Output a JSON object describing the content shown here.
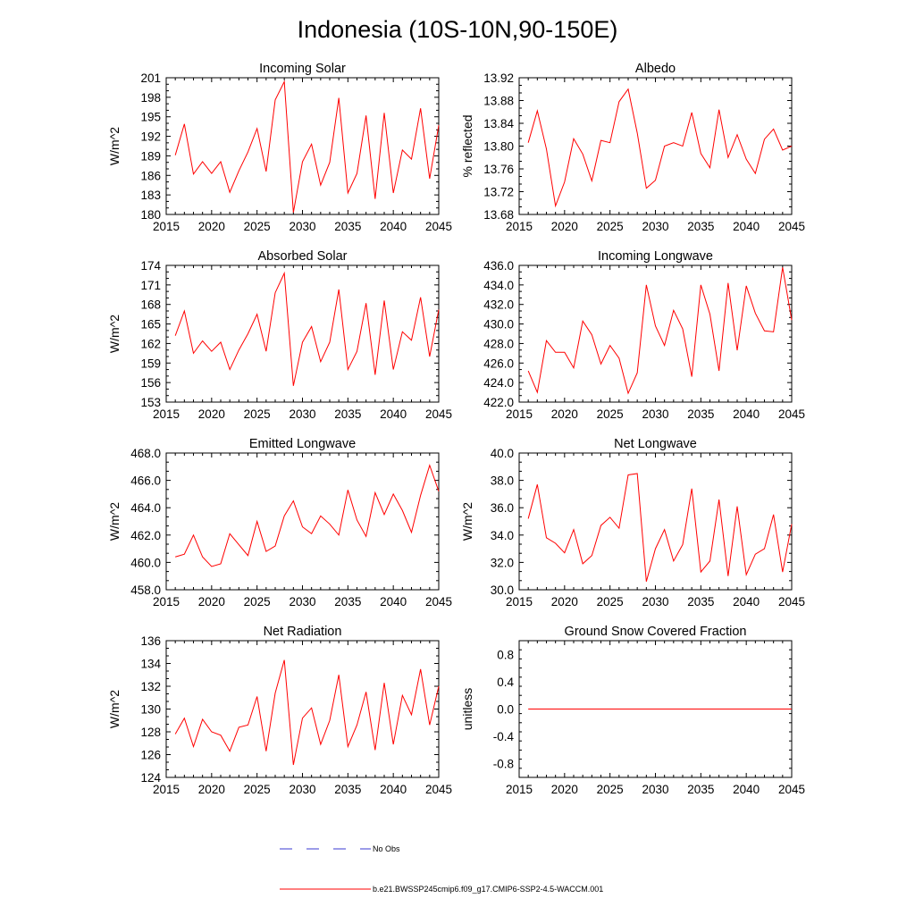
{
  "figure": {
    "title": "Indonesia (10S-10N,90-150E)",
    "legend": [
      {
        "label": "No Obs",
        "color": "#3a3ad0",
        "style": "dashed"
      },
      {
        "label": "b.e21.BWSSP245cmip6.f09_g17.CMIP6-SSP2-4.5-WACCM.001",
        "color": "#ff0000",
        "style": "solid"
      }
    ],
    "series_color": "#ff0000"
  },
  "chart_data": [
    {
      "type": "line",
      "title": "Incoming Solar",
      "ylabel": "W/m^2",
      "xlim": [
        2015,
        2045
      ],
      "ylim": [
        180,
        201
      ],
      "xticks": [
        2015,
        2020,
        2025,
        2030,
        2035,
        2040,
        2045
      ],
      "yticks": [
        180,
        183,
        186,
        189,
        192,
        195,
        198,
        201
      ],
      "ytick_labels": [
        "180",
        "183",
        "186",
        "189",
        "192",
        "195",
        "198",
        "201"
      ],
      "series": [
        {
          "name": "b.e21.BWSSP245cmip6.f09_g17.CMIP6-SSP2-4.5-WACCM.001",
          "x": [
            2016,
            2017,
            2018,
            2019,
            2020,
            2021,
            2022,
            2023,
            2024,
            2025,
            2026,
            2027,
            2028,
            2029,
            2030,
            2031,
            2032,
            2033,
            2034,
            2035,
            2036,
            2037,
            2038,
            2039,
            2040,
            2041,
            2042,
            2043,
            2044,
            2045
          ],
          "y": [
            189.1,
            193.9,
            186.2,
            188.1,
            186.3,
            188.1,
            183.4,
            186.7,
            189.6,
            193.2,
            186.6,
            197.6,
            200.4,
            180.3,
            188.1,
            190.8,
            184.5,
            188.0,
            197.9,
            183.3,
            186.3,
            195.2,
            182.4,
            195.6,
            183.3,
            189.9,
            188.5,
            196.3,
            185.5,
            193.7
          ]
        }
      ]
    },
    {
      "type": "line",
      "title": "Albedo",
      "ylabel": "% reflected",
      "xlim": [
        2015,
        2045
      ],
      "ylim": [
        13.68,
        13.92
      ],
      "xticks": [
        2015,
        2020,
        2025,
        2030,
        2035,
        2040,
        2045
      ],
      "yticks": [
        13.68,
        13.72,
        13.76,
        13.8,
        13.84,
        13.88,
        13.92
      ],
      "ytick_labels": [
        "13.68",
        "13.72",
        "13.76",
        "13.80",
        "13.84",
        "13.88",
        "13.92"
      ],
      "series": [
        {
          "name": "b.e21.BWSSP245cmip6.f09_g17.CMIP6-SSP2-4.5-WACCM.001",
          "x": [
            2016,
            2017,
            2018,
            2019,
            2020,
            2021,
            2022,
            2023,
            2024,
            2025,
            2026,
            2027,
            2028,
            2029,
            2030,
            2031,
            2032,
            2033,
            2034,
            2035,
            2036,
            2037,
            2038,
            2039,
            2040,
            2041,
            2042,
            2043,
            2044,
            2045
          ],
          "y": [
            13.806,
            13.862,
            13.795,
            13.695,
            13.737,
            13.813,
            13.786,
            13.739,
            13.81,
            13.806,
            13.878,
            13.9,
            13.823,
            13.726,
            13.74,
            13.8,
            13.806,
            13.8,
            13.859,
            13.787,
            13.762,
            13.864,
            13.78,
            13.82,
            13.777,
            13.752,
            13.812,
            13.83,
            13.793,
            13.8
          ]
        }
      ]
    },
    {
      "type": "line",
      "title": "Absorbed Solar",
      "ylabel": "W/m^2",
      "xlim": [
        2015,
        2045
      ],
      "ylim": [
        153,
        174
      ],
      "xticks": [
        2015,
        2020,
        2025,
        2030,
        2035,
        2040,
        2045
      ],
      "yticks": [
        153,
        156,
        159,
        162,
        165,
        168,
        171,
        174
      ],
      "ytick_labels": [
        "153",
        "156",
        "159",
        "162",
        "165",
        "168",
        "171",
        "174"
      ],
      "series": [
        {
          "name": "b.e21.BWSSP245cmip6.f09_g17.CMIP6-SSP2-4.5-WACCM.001",
          "x": [
            2016,
            2017,
            2018,
            2019,
            2020,
            2021,
            2022,
            2023,
            2024,
            2025,
            2026,
            2027,
            2028,
            2029,
            2030,
            2031,
            2032,
            2033,
            2034,
            2035,
            2036,
            2037,
            2038,
            2039,
            2040,
            2041,
            2042,
            2043,
            2044,
            2045
          ],
          "y": [
            163.2,
            167.0,
            160.5,
            162.4,
            160.8,
            162.2,
            158.0,
            161.0,
            163.5,
            166.5,
            160.8,
            169.8,
            172.8,
            155.5,
            162.2,
            164.6,
            159.2,
            162.2,
            170.3,
            158.0,
            160.8,
            168.2,
            157.2,
            168.6,
            158.0,
            163.8,
            162.5,
            169.1,
            160.0,
            167.2
          ]
        }
      ]
    },
    {
      "type": "line",
      "title": "Incoming Longwave",
      "ylabel": "",
      "xlim": [
        2015,
        2045
      ],
      "ylim": [
        422,
        436
      ],
      "xticks": [
        2015,
        2020,
        2025,
        2030,
        2035,
        2040,
        2045
      ],
      "yticks": [
        422,
        424,
        426,
        428,
        430,
        432,
        434,
        436
      ],
      "ytick_labels": [
        "422.0",
        "424.0",
        "426.0",
        "428.0",
        "430.0",
        "432.0",
        "434.0",
        "436.0"
      ],
      "series": [
        {
          "name": "b.e21.BWSSP245cmip6.f09_g17.CMIP6-SSP2-4.5-WACCM.001",
          "x": [
            2016,
            2017,
            2018,
            2019,
            2020,
            2021,
            2022,
            2023,
            2024,
            2025,
            2026,
            2027,
            2028,
            2029,
            2030,
            2031,
            2032,
            2033,
            2034,
            2035,
            2036,
            2037,
            2038,
            2039,
            2040,
            2041,
            2042,
            2043,
            2044,
            2045
          ],
          "y": [
            425.2,
            423.0,
            428.3,
            427.1,
            427.1,
            425.5,
            430.3,
            428.9,
            425.9,
            427.8,
            426.5,
            422.9,
            425.0,
            434.0,
            429.8,
            427.8,
            431.4,
            429.5,
            424.6,
            434.0,
            431.0,
            425.2,
            434.2,
            427.3,
            433.9,
            431.1,
            429.3,
            429.2,
            435.8,
            430.4
          ]
        }
      ]
    },
    {
      "type": "line",
      "title": "Emitted Longwave",
      "ylabel": "W/m^2",
      "xlim": [
        2015,
        2045
      ],
      "ylim": [
        458,
        468
      ],
      "xticks": [
        2015,
        2020,
        2025,
        2030,
        2035,
        2040,
        2045
      ],
      "yticks": [
        458,
        460,
        462,
        464,
        466,
        468
      ],
      "ytick_labels": [
        "458.0",
        "460.0",
        "462.0",
        "464.0",
        "466.0",
        "468.0"
      ],
      "series": [
        {
          "name": "b.e21.BWSSP245cmip6.f09_g17.CMIP6-SSP2-4.5-WACCM.001",
          "x": [
            2016,
            2017,
            2018,
            2019,
            2020,
            2021,
            2022,
            2023,
            2024,
            2025,
            2026,
            2027,
            2028,
            2029,
            2030,
            2031,
            2032,
            2033,
            2034,
            2035,
            2036,
            2037,
            2038,
            2039,
            2040,
            2041,
            2042,
            2043,
            2044,
            2045
          ],
          "y": [
            460.4,
            460.6,
            462.0,
            460.4,
            459.7,
            459.9,
            462.1,
            461.3,
            460.5,
            463.0,
            460.8,
            461.2,
            463.4,
            464.5,
            462.6,
            462.1,
            463.4,
            462.8,
            462.0,
            465.3,
            463.1,
            461.9,
            465.1,
            463.5,
            465.0,
            463.8,
            462.2,
            464.9,
            467.1,
            465.2
          ]
        }
      ]
    },
    {
      "type": "line",
      "title": "Net Longwave",
      "ylabel": "W/m^2",
      "xlim": [
        2015,
        2045
      ],
      "ylim": [
        30,
        40
      ],
      "xticks": [
        2015,
        2020,
        2025,
        2030,
        2035,
        2040,
        2045
      ],
      "yticks": [
        30,
        32,
        34,
        36,
        38,
        40
      ],
      "ytick_labels": [
        "30.0",
        "32.0",
        "34.0",
        "36.0",
        "38.0",
        "40.0"
      ],
      "series": [
        {
          "name": "b.e21.BWSSP245cmip6.f09_g17.CMIP6-SSP2-4.5-WACCM.001",
          "x": [
            2016,
            2017,
            2018,
            2019,
            2020,
            2021,
            2022,
            2023,
            2024,
            2025,
            2026,
            2027,
            2028,
            2029,
            2030,
            2031,
            2032,
            2033,
            2034,
            2035,
            2036,
            2037,
            2038,
            2039,
            2040,
            2041,
            2042,
            2043,
            2044,
            2045
          ],
          "y": [
            35.2,
            37.7,
            33.8,
            33.4,
            32.7,
            34.4,
            31.9,
            32.5,
            34.7,
            35.3,
            34.5,
            38.4,
            38.5,
            30.6,
            33.0,
            34.4,
            32.1,
            33.3,
            37.4,
            31.3,
            32.1,
            36.6,
            31.0,
            36.1,
            31.1,
            32.6,
            33.0,
            35.5,
            31.3,
            34.8
          ]
        }
      ]
    },
    {
      "type": "line",
      "title": "Net Radiation",
      "ylabel": "W/m^2",
      "xlim": [
        2015,
        2045
      ],
      "ylim": [
        124,
        136
      ],
      "xticks": [
        2015,
        2020,
        2025,
        2030,
        2035,
        2040,
        2045
      ],
      "yticks": [
        124,
        126,
        128,
        130,
        132,
        134,
        136
      ],
      "ytick_labels": [
        "124",
        "126",
        "128",
        "130",
        "132",
        "134",
        "136"
      ],
      "series": [
        {
          "name": "b.e21.BWSSP245cmip6.f09_g17.CMIP6-SSP2-4.5-WACCM.001",
          "x": [
            2016,
            2017,
            2018,
            2019,
            2020,
            2021,
            2022,
            2023,
            2024,
            2025,
            2026,
            2027,
            2028,
            2029,
            2030,
            2031,
            2032,
            2033,
            2034,
            2035,
            2036,
            2037,
            2038,
            2039,
            2040,
            2041,
            2042,
            2043,
            2044,
            2045
          ],
          "y": [
            127.8,
            129.2,
            126.7,
            129.1,
            128.0,
            127.7,
            126.3,
            128.4,
            128.6,
            131.1,
            126.3,
            131.4,
            134.3,
            125.1,
            129.2,
            130.1,
            126.9,
            129.0,
            133.0,
            126.7,
            128.6,
            131.5,
            126.4,
            132.3,
            126.9,
            131.2,
            129.5,
            133.5,
            128.6,
            132.0
          ]
        }
      ]
    },
    {
      "type": "line",
      "title": "Ground Snow Covered Fraction",
      "ylabel": "unitless",
      "xlim": [
        2015,
        2045
      ],
      "ylim": [
        -1.0,
        1.0
      ],
      "xticks": [
        2015,
        2020,
        2025,
        2030,
        2035,
        2040,
        2045
      ],
      "yticks": [
        -0.8,
        -0.4,
        0.0,
        0.4,
        0.8
      ],
      "ytick_labels": [
        "-0.8",
        "-0.4",
        "0.0",
        "0.4",
        "0.8"
      ],
      "series": [
        {
          "name": "b.e21.BWSSP245cmip6.f09_g17.CMIP6-SSP2-4.5-WACCM.001",
          "x": [
            2016,
            2045
          ],
          "y": [
            0.0,
            0.0
          ]
        }
      ]
    }
  ]
}
